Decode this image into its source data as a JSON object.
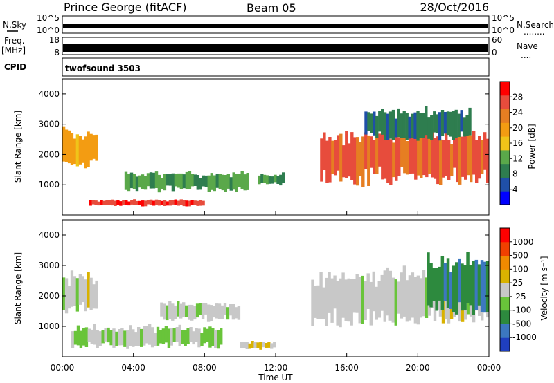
{
  "header": {
    "station": "Prince George (fitACF)",
    "beam": "Beam 05",
    "date": "28/Oct/2016"
  },
  "strips": {
    "nsky": {
      "label": "N.Sky",
      "left_top": "10^5",
      "left_bottom": "10^0",
      "right_top": "10^5",
      "right_bottom": "10^0"
    },
    "nsearch": {
      "label": "N.Search",
      "dots": "........"
    },
    "freq": {
      "label_line1": "Freq.",
      "label_line2": "[MHz]",
      "top": "18",
      "bottom": "8"
    },
    "nave": {
      "label": "Nave",
      "top": "60",
      "bottom": "0",
      "dots": "...."
    },
    "cpid": {
      "label": "CPID",
      "value": "twofsound 3503"
    }
  },
  "power_panel": {
    "ylabel": "Slant Range [km]",
    "yticks": [
      "1000",
      "2000",
      "3000",
      "4000"
    ],
    "colorbar_label": "Power [dB]",
    "colorbar_ticks": [
      "28",
      "24",
      "20",
      "16",
      "12",
      "8",
      "4"
    ]
  },
  "velocity_panel": {
    "ylabel": "Slant Range [km]",
    "yticks": [
      "1000",
      "2000",
      "3000",
      "4000"
    ],
    "colorbar_label": "Velocity [m s⁻¹]",
    "colorbar_ticks": [
      "1000",
      "500",
      "100",
      "25",
      "-25",
      "-100",
      "-500",
      "-1000"
    ]
  },
  "xaxis": {
    "label": "Time UT",
    "ticks": [
      "00:00",
      "04:00",
      "08:00",
      "12:00",
      "16:00",
      "20:00",
      "00:00"
    ]
  },
  "colors": {
    "power_scale": [
      "#0000ff",
      "#1f4fa8",
      "#2e7d4f",
      "#5aa84a",
      "#f0c419",
      "#f39c12",
      "#e67e22",
      "#e74c3c",
      "#ff0000"
    ],
    "velocity_scale": [
      "#1f3fbf",
      "#3c78c0",
      "#2d8a3e",
      "#69c43a",
      "#c8c8c8",
      "#d9b200",
      "#f08a00",
      "#f04000",
      "#ff0000"
    ]
  },
  "chart_data": [
    {
      "type": "heatmap",
      "name": "Power",
      "x_range_hours": [
        0,
        24
      ],
      "ylim": [
        0,
        4500
      ],
      "color_range": [
        0,
        30
      ],
      "features": [
        {
          "t_start": 0.0,
          "t_end": 2.0,
          "range_start": 1600,
          "range_end": 2800,
          "value": 18
        },
        {
          "t_start": 1.5,
          "t_end": 8.0,
          "range_start": 300,
          "range_end": 500,
          "value": 26
        },
        {
          "t_start": 3.5,
          "t_end": 10.5,
          "range_start": 800,
          "range_end": 1400,
          "value": 10
        },
        {
          "t_start": 11.0,
          "t_end": 12.5,
          "range_start": 1000,
          "range_end": 1400,
          "value": 10
        },
        {
          "t_start": 14.5,
          "t_end": 24.0,
          "range_start": 1100,
          "range_end": 2800,
          "value": 24
        },
        {
          "t_start": 17.0,
          "t_end": 23.0,
          "range_start": 2500,
          "range_end": 3500,
          "value": 8
        }
      ]
    },
    {
      "type": "heatmap",
      "name": "Velocity",
      "x_range_hours": [
        0,
        24
      ],
      "ylim": [
        0,
        4500
      ],
      "color_range": [
        -1000,
        1000
      ],
      "features": [
        {
          "t_start": 0.0,
          "t_end": 2.0,
          "range_start": 1500,
          "range_end": 2700,
          "value": 0
        },
        {
          "t_start": 0.5,
          "t_end": 9.0,
          "range_start": 300,
          "range_end": 1000,
          "value": -100
        },
        {
          "t_start": 5.5,
          "t_end": 10.0,
          "range_start": 1200,
          "range_end": 1800,
          "value": 0
        },
        {
          "t_start": 10.0,
          "t_end": 12.0,
          "range_start": 250,
          "range_end": 500,
          "value": 100
        },
        {
          "t_start": 14.0,
          "t_end": 24.0,
          "range_start": 1100,
          "range_end": 2800,
          "value": 0
        },
        {
          "t_start": 20.5,
          "t_end": 24.0,
          "range_start": 1500,
          "range_end": 3300,
          "value": -500
        }
      ]
    }
  ]
}
